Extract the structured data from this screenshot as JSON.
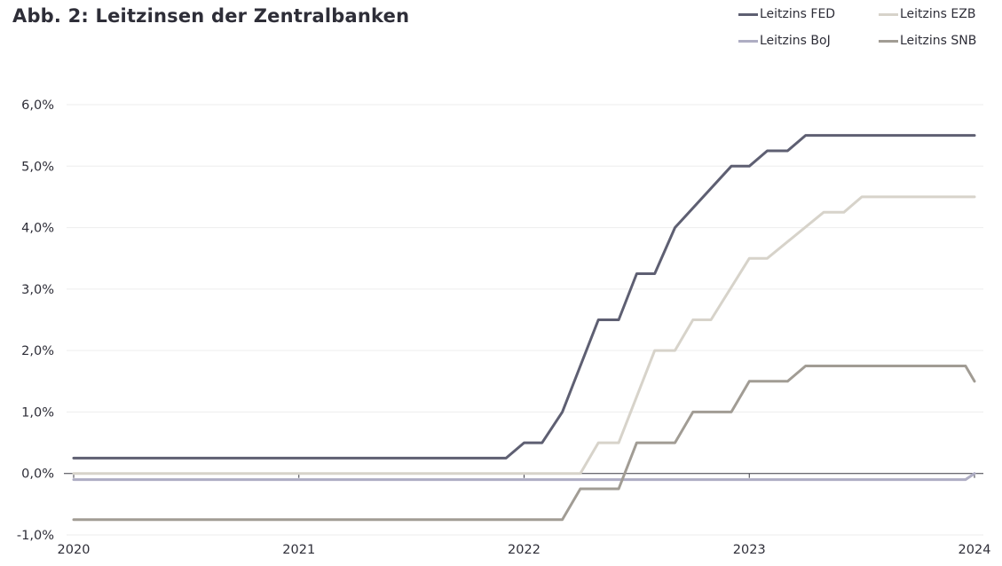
{
  "chart_data": {
    "type": "line",
    "title": "Abb. 2: Leitzinsen der Zentralbanken",
    "xlabel": "",
    "ylabel": "",
    "x_ticks": [
      "2020",
      "2021",
      "2022",
      "2023",
      "2024"
    ],
    "xlim": [
      2020.0,
      2024.0
    ],
    "y_ticks": [
      "-1,0%",
      "0,0%",
      "1,0%",
      "2,0%",
      "3,0%",
      "4,0%",
      "5,0%",
      "6,0%"
    ],
    "ylim": [
      -1.0,
      6.0
    ],
    "grid": "horizontal",
    "legend_position": "top-right",
    "series": [
      {
        "name": "Leitzins FED",
        "color": "#5e5f72",
        "points": [
          [
            2020.0,
            0.25
          ],
          [
            2021.92,
            0.25
          ],
          [
            2022.0,
            0.5
          ],
          [
            2022.08,
            0.5
          ],
          [
            2022.17,
            1.0
          ],
          [
            2022.33,
            2.5
          ],
          [
            2022.42,
            2.5
          ],
          [
            2022.5,
            3.25
          ],
          [
            2022.58,
            3.25
          ],
          [
            2022.67,
            4.0
          ],
          [
            2022.92,
            5.0
          ],
          [
            2023.0,
            5.0
          ],
          [
            2023.08,
            5.25
          ],
          [
            2023.17,
            5.25
          ],
          [
            2023.25,
            5.5
          ],
          [
            2024.0,
            5.5
          ]
        ]
      },
      {
        "name": "Leitzins EZB",
        "color": "#d7d3ca",
        "points": [
          [
            2020.0,
            0.0
          ],
          [
            2022.25,
            0.0
          ],
          [
            2022.33,
            0.5
          ],
          [
            2022.42,
            0.5
          ],
          [
            2022.58,
            2.0
          ],
          [
            2022.67,
            2.0
          ],
          [
            2022.75,
            2.5
          ],
          [
            2022.83,
            2.5
          ],
          [
            2023.0,
            3.5
          ],
          [
            2023.08,
            3.5
          ],
          [
            2023.33,
            4.25
          ],
          [
            2023.42,
            4.25
          ],
          [
            2023.5,
            4.5
          ],
          [
            2024.0,
            4.5
          ]
        ]
      },
      {
        "name": "Leitzins BoJ",
        "color": "#aeadc3",
        "points": [
          [
            2020.0,
            -0.1
          ],
          [
            2023.96,
            -0.1
          ],
          [
            2024.0,
            0.0
          ]
        ]
      },
      {
        "name": "Leitzins SNB",
        "color": "#a19c94",
        "points": [
          [
            2020.0,
            -0.75
          ],
          [
            2022.17,
            -0.75
          ],
          [
            2022.25,
            -0.25
          ],
          [
            2022.42,
            -0.25
          ],
          [
            2022.5,
            0.5
          ],
          [
            2022.67,
            0.5
          ],
          [
            2022.75,
            1.0
          ],
          [
            2022.92,
            1.0
          ],
          [
            2023.0,
            1.5
          ],
          [
            2023.17,
            1.5
          ],
          [
            2023.25,
            1.75
          ],
          [
            2023.96,
            1.75
          ],
          [
            2024.0,
            1.5
          ]
        ]
      }
    ]
  }
}
